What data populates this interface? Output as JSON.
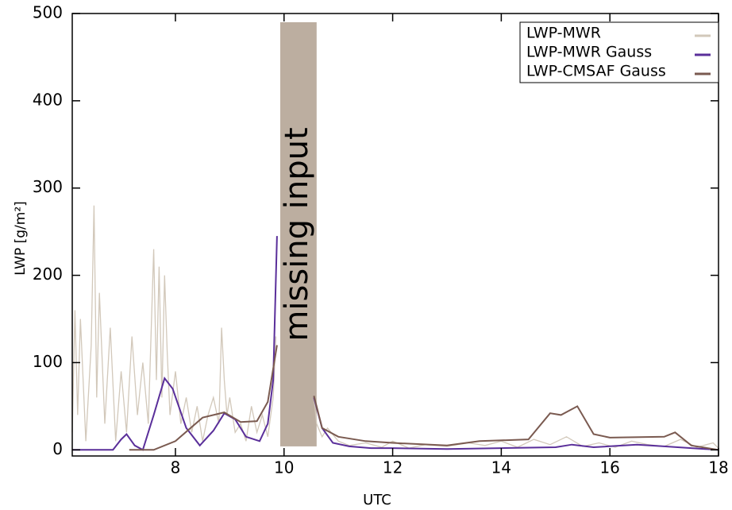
{
  "chart_data": {
    "type": "line",
    "xlabel": "UTC",
    "ylabel": "LWP [g/m²]",
    "xlim": [
      6.1,
      18
    ],
    "ylim": [
      -7,
      500
    ],
    "xticks": [
      8,
      10,
      12,
      14,
      16,
      18
    ],
    "yticks": [
      0,
      100,
      200,
      300,
      400,
      500
    ],
    "legend": "upper right",
    "annotations": [
      {
        "text": "missing input",
        "x": [
          9.93,
          10.6
        ],
        "y": [
          4,
          490
        ],
        "color": "#bcaea0"
      }
    ],
    "series": [
      {
        "name": "LWP-MWR",
        "color": "#d2c8ba",
        "x": [
          6.1,
          6.15,
          6.2,
          6.25,
          6.35,
          6.45,
          6.5,
          6.55,
          6.6,
          6.7,
          6.8,
          6.9,
          7.0,
          7.1,
          7.2,
          7.3,
          7.4,
          7.5,
          7.6,
          7.65,
          7.7,
          7.75,
          7.8,
          7.85,
          7.9,
          8.0,
          8.1,
          8.2,
          8.3,
          8.4,
          8.5,
          8.6,
          8.7,
          8.8,
          8.85,
          8.9,
          8.95,
          9.0,
          9.1,
          9.2,
          9.3,
          9.4,
          9.5,
          9.6,
          9.7,
          9.8,
          9.85,
          10.2,
          10.55,
          10.6,
          10.7,
          10.8,
          11.0,
          11.2,
          11.5,
          11.8,
          12.0,
          12.3,
          12.6,
          13.0,
          13.4,
          13.7,
          14.0,
          14.3,
          14.6,
          14.9,
          15.2,
          15.5,
          15.8,
          16.1,
          16.4,
          16.7,
          17.0,
          17.3,
          17.6,
          17.9,
          18.0
        ],
        "values": [
          20,
          160,
          40,
          150,
          10,
          120,
          280,
          60,
          180,
          30,
          140,
          10,
          90,
          20,
          130,
          40,
          100,
          30,
          230,
          80,
          210,
          60,
          200,
          110,
          40,
          90,
          30,
          60,
          20,
          50,
          10,
          40,
          60,
          30,
          140,
          80,
          40,
          60,
          20,
          30,
          10,
          50,
          20,
          40,
          15,
          60,
          130,
          null,
          60,
          30,
          15,
          25,
          10,
          5,
          8,
          3,
          10,
          2,
          6,
          4,
          8,
          5,
          10,
          3,
          12,
          6,
          15,
          4,
          8,
          3,
          10,
          6,
          4,
          12,
          3,
          8,
          2
        ]
      },
      {
        "name": "LWP-MWR Gauss",
        "color": "#5a2f9a",
        "x": [
          6.1,
          6.85,
          7.0,
          7.1,
          7.25,
          7.4,
          7.6,
          7.8,
          7.95,
          8.2,
          8.45,
          8.7,
          8.9,
          9.1,
          9.3,
          9.55,
          9.7,
          9.8,
          9.87,
          10.2,
          10.55,
          10.7,
          10.9,
          11.2,
          11.6,
          12.0,
          13.0,
          14.0,
          15.0,
          15.3,
          15.7,
          16.5,
          17.0,
          17.5,
          18.0
        ],
        "values": [
          0,
          0,
          12,
          18,
          5,
          0,
          40,
          82,
          70,
          25,
          5,
          22,
          42,
          35,
          15,
          10,
          30,
          80,
          245,
          null,
          60,
          25,
          8,
          4,
          2,
          2,
          1,
          2,
          3,
          6,
          3,
          6,
          4,
          2,
          0
        ]
      },
      {
        "name": "LWP-CMSAF Gauss",
        "color": "#7a5a50",
        "x": [
          7.15,
          7.6,
          8.0,
          8.5,
          8.9,
          9.2,
          9.5,
          9.7,
          9.87,
          10.2,
          10.55,
          10.7,
          11.0,
          11.5,
          12.0,
          13.0,
          13.6,
          14.5,
          14.9,
          15.1,
          15.4,
          15.7,
          16.0,
          17.0,
          17.2,
          17.5,
          18.0
        ],
        "values": [
          0,
          0,
          10,
          37,
          43,
          32,
          33,
          55,
          120,
          null,
          62,
          25,
          15,
          10,
          8,
          5,
          10,
          12,
          42,
          40,
          50,
          18,
          14,
          15,
          20,
          5,
          0
        ]
      }
    ]
  }
}
